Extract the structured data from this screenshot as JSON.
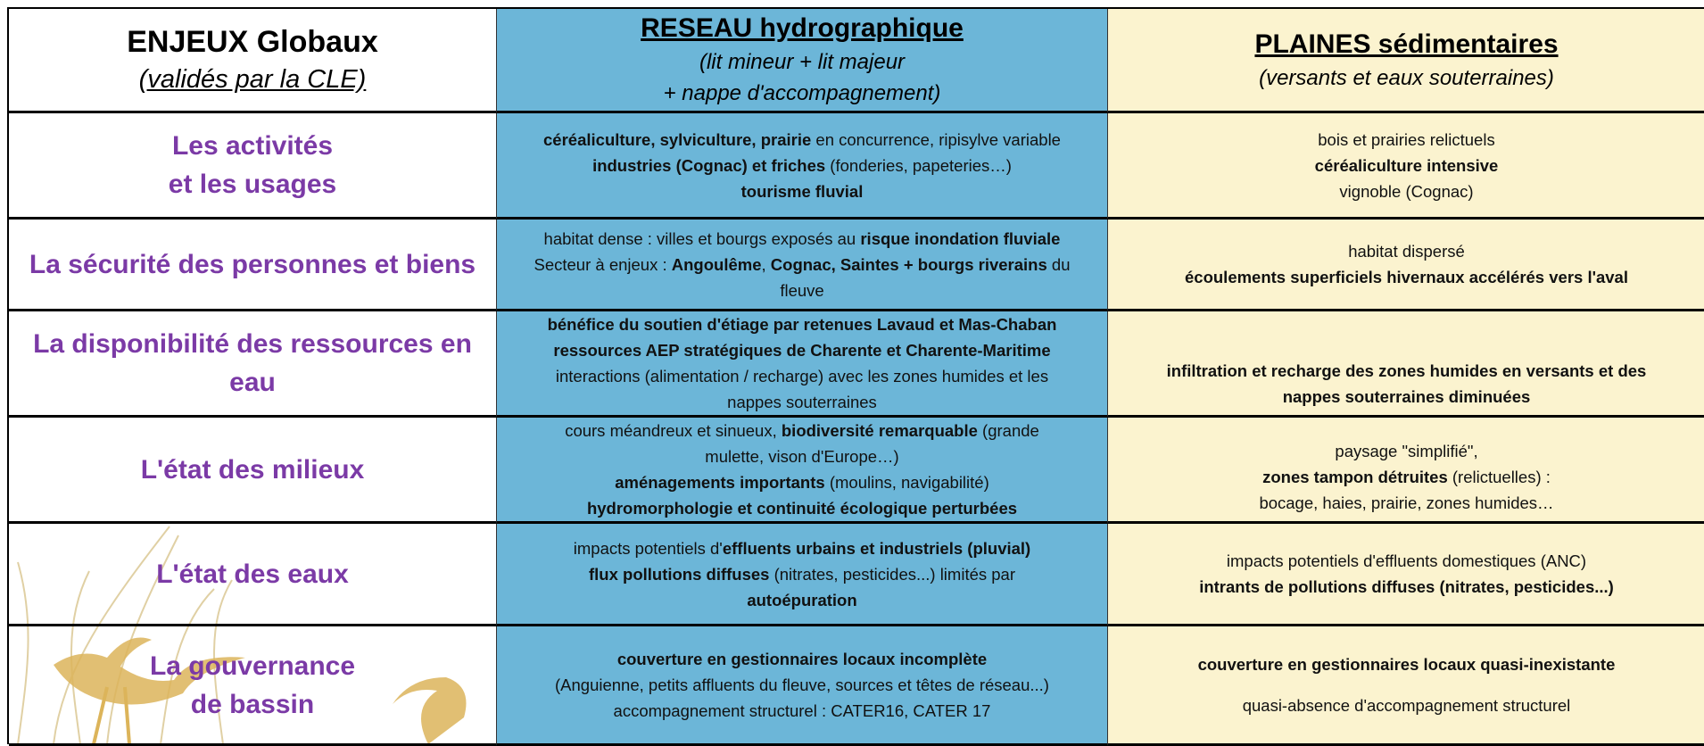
{
  "table": {
    "header": [
      {
        "title": "ENJEUX Globaux",
        "subtitle": [
          "(validés par la CLE)"
        ]
      },
      {
        "title": "RESEAU hydrographique",
        "subtitle": [
          "(lit mineur + lit majeur",
          "+ nappe d'accompagnement)"
        ]
      },
      {
        "title": "PLAINES sédimentaires",
        "subtitle": [
          "(versants et eaux souterraines)"
        ]
      }
    ],
    "rows": [
      {
        "label": [
          "Les activités",
          "et les usages"
        ],
        "cells": [
          [
            [
              {
                "t": "céréaliculture, sylviculture, prairie",
                "b": true
              },
              {
                "t": " en concurrence, ripisylve variable"
              }
            ],
            [
              {
                "t": "industries (Cognac) et friches",
                "b": true
              },
              {
                "t": " (fonderies, papeteries…)"
              }
            ],
            [
              {
                "t": "tourisme fluvial",
                "b": true
              }
            ]
          ],
          [
            [
              {
                "t": "bois et prairies relictuels"
              }
            ],
            [
              {
                "t": "céréaliculture intensive",
                "b": true
              }
            ],
            [
              {
                "t": "vignoble (Cognac)"
              }
            ]
          ]
        ]
      },
      {
        "label": [
          "La sécurité des personnes et biens"
        ],
        "cells": [
          [
            [
              {
                "t": "habitat dense : villes et bourgs exposés au "
              },
              {
                "t": "risque inondation fluviale",
                "b": true
              }
            ],
            [
              {
                "t": "Secteur à enjeux : "
              },
              {
                "t": "Angoulême",
                "b": true
              },
              {
                "t": ", "
              },
              {
                "t": "Cognac, Saintes + bourgs riverains",
                "b": true
              },
              {
                "t": " du"
              }
            ],
            [
              {
                "t": "fleuve"
              }
            ]
          ],
          [
            [
              {
                "t": "habitat dispersé"
              }
            ],
            [
              {
                "t": "écoulements superficiels hivernaux accélérés vers l'aval",
                "b": true
              }
            ]
          ]
        ]
      },
      {
        "label": [
          "La disponibilité des ressources en",
          "eau"
        ],
        "cells": [
          [
            [
              {
                "t": "bénéfice du soutien d'étiage par retenues Lavaud et Mas-Chaban",
                "b": true
              }
            ],
            [
              {
                "t": "ressources AEP stratégiques de Charente et Charente-Maritime",
                "b": true
              }
            ],
            [
              {
                "t": "interactions (alimentation / recharge) avec les zones humides et les"
              }
            ],
            [
              {
                "t": "nappes souterraines"
              }
            ]
          ],
          [
            [
              {
                "t": "infiltration et recharge des zones humides en versants et des",
                "b": true
              }
            ],
            [
              {
                "t": "nappes souterraines diminuées",
                "b": true
              }
            ]
          ]
        ]
      },
      {
        "label": [
          "L'état des milieux"
        ],
        "cells": [
          [
            [
              {
                "t": "cours méandreux et sinueux, "
              },
              {
                "t": "biodiversité remarquable",
                "b": true
              },
              {
                "t": " (grande"
              }
            ],
            [
              {
                "t": "mulette, vison d'Europe…)"
              }
            ],
            [
              {
                "t": "aménagements importants",
                "b": true
              },
              {
                "t": " (moulins, navigabilité)"
              }
            ],
            [
              {
                "t": "hydromorphologie et continuité écologique perturbées",
                "b": true
              }
            ]
          ],
          [
            [
              {
                "t": "paysage \"simplifié\","
              }
            ],
            [
              {
                "t": "zones tampon détruites",
                "b": true
              },
              {
                "t": " (relictuelles) :"
              }
            ],
            [
              {
                "t": "bocage, haies, prairie, zones humides…"
              }
            ]
          ]
        ]
      },
      {
        "label": [
          "L'état des eaux"
        ],
        "cells": [
          [
            [
              {
                "t": "impacts potentiels d'"
              },
              {
                "t": "effluents urbains et industriels (pluvial)",
                "b": true
              }
            ],
            [
              {
                "t": "flux pollutions diffuses",
                "b": true
              },
              {
                "t": " (nitrates, pesticides...) limités par"
              }
            ],
            [
              {
                "t": "autoépuration",
                "b": true
              }
            ]
          ],
          [
            [
              {
                "t": "impacts potentiels d'effluents domestiques (ANC)"
              }
            ],
            [
              {
                "t": "intrants de pollutions diffuses (nitrates, pesticides...)",
                "b": true
              }
            ]
          ]
        ]
      },
      {
        "label": [
          "La gouvernance",
          "de bassin"
        ],
        "cells": [
          [
            [
              {
                "t": "couverture en gestionnaires locaux  incomplète",
                "b": true
              }
            ],
            [
              {
                "t": "(Anguienne, petits affluents du fleuve, sources et têtes de réseau...)"
              }
            ],
            [
              {
                "t": "accompagnement structurel : CATER16, CATER 17"
              }
            ]
          ],
          [
            [
              {
                "t": "couverture en gestionnaires locaux  quasi-inexistante",
                "b": true
              }
            ],
            [
              {
                "t": "quasi-absence d'accompagnement structurel"
              }
            ]
          ]
        ]
      }
    ]
  }
}
